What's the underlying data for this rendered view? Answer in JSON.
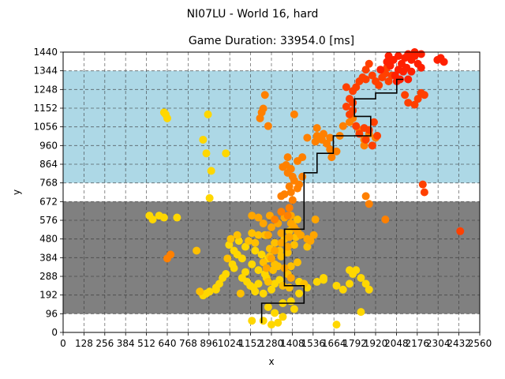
{
  "figure": {
    "suptitle": "NI07LU - World 16, hard"
  },
  "chart_data": {
    "type": "scatter",
    "title": "Game Duration: 33954.0 [ms]",
    "xlabel": "x",
    "ylabel": "y",
    "xlim": [
      0,
      2560
    ],
    "ylim": [
      0,
      1440
    ],
    "xticks": [
      0,
      128,
      256,
      384,
      512,
      640,
      768,
      896,
      1024,
      1152,
      1280,
      1408,
      1536,
      1664,
      1792,
      1920,
      2048,
      2176,
      2304,
      2432,
      2560
    ],
    "xtick_labels": [
      "0",
      "128",
      "256",
      "384",
      "512",
      "640",
      "768",
      "896",
      "1024",
      "1152",
      "1280",
      "1408",
      "1536",
      "1664",
      "1792",
      "1920",
      "2048",
      "2176",
      "2304",
      "2432",
      "2560"
    ],
    "yticks": [
      0,
      96,
      192,
      288,
      384,
      480,
      576,
      672,
      768,
      864,
      960,
      1056,
      1152,
      1248,
      1344,
      1440
    ],
    "ytick_labels": [
      "0",
      "96",
      "192",
      "288",
      "384",
      "480",
      "576",
      "672",
      "768",
      "864",
      "960",
      "1056",
      "1152",
      "1248",
      "1344",
      "1440"
    ],
    "grid": true,
    "grid_style": "dashed",
    "regions": [
      {
        "name": "gray-band",
        "color": "#808080",
        "y_range": [
          96,
          672
        ]
      },
      {
        "name": "blue-band",
        "color": "#add8e6",
        "y_range": [
          768,
          1344
        ]
      }
    ],
    "path": {
      "color": "#000000",
      "points": [
        [
          1220,
          48
        ],
        [
          1220,
          150
        ],
        [
          1480,
          150
        ],
        [
          1480,
          240
        ],
        [
          1360,
          240
        ],
        [
          1360,
          530
        ],
        [
          1480,
          530
        ],
        [
          1480,
          820
        ],
        [
          1560,
          820
        ],
        [
          1560,
          920
        ],
        [
          1660,
          920
        ],
        [
          1660,
          1010
        ],
        [
          1890,
          1010
        ],
        [
          1890,
          1110
        ],
        [
          1790,
          1110
        ],
        [
          1790,
          1200
        ],
        [
          1920,
          1200
        ],
        [
          1920,
          1230
        ],
        [
          2050,
          1230
        ],
        [
          2050,
          1300
        ],
        [
          2090,
          1300
        ]
      ]
    },
    "colors": {
      "yellow": "#ffd700",
      "gold": "#ffc000",
      "light-orange": "#ffa500",
      "orange": "#ff8000",
      "red-orange": "#ff4000",
      "red": "#ff2000"
    },
    "series": [
      {
        "color": "yellow",
        "points": [
          [
            1230,
            60
          ],
          [
            1280,
            40
          ],
          [
            1320,
            50
          ],
          [
            1350,
            80
          ],
          [
            1300,
            100
          ],
          [
            1260,
            130
          ],
          [
            1350,
            150
          ],
          [
            1420,
            120
          ],
          [
            1400,
            160
          ],
          [
            1230,
            200
          ],
          [
            1280,
            220
          ],
          [
            1300,
            250
          ],
          [
            1330,
            270
          ],
          [
            1380,
            300
          ],
          [
            1240,
            300
          ],
          [
            1200,
            320
          ],
          [
            1160,
            350
          ],
          [
            1100,
            380
          ],
          [
            1070,
            400
          ],
          [
            1050,
            420
          ],
          [
            1020,
            450
          ],
          [
            1080,
            470
          ],
          [
            1120,
            440
          ],
          [
            1180,
            420
          ],
          [
            1220,
            400
          ],
          [
            1260,
            380
          ],
          [
            1000,
            300
          ],
          [
            980,
            280
          ],
          [
            960,
            250
          ],
          [
            940,
            230
          ],
          [
            900,
            210
          ],
          [
            880,
            200
          ],
          [
            860,
            190
          ],
          [
            1100,
            280
          ],
          [
            1130,
            260
          ],
          [
            1150,
            240
          ],
          [
            1170,
            230
          ],
          [
            1180,
            210
          ],
          [
            1200,
            250
          ],
          [
            1250,
            280
          ],
          [
            1450,
            200
          ],
          [
            1500,
            230
          ],
          [
            1560,
            260
          ],
          [
            1600,
            270
          ],
          [
            1680,
            240
          ],
          [
            1720,
            220
          ],
          [
            1760,
            250
          ],
          [
            1780,
            300
          ],
          [
            1800,
            320
          ],
          [
            1830,
            280
          ],
          [
            1860,
            250
          ],
          [
            1880,
            220
          ],
          [
            1760,
            320
          ],
          [
            1680,
            40
          ],
          [
            1830,
            105
          ],
          [
            940,
            220
          ],
          [
            900,
            690
          ],
          [
            910,
            830
          ],
          [
            1000,
            920
          ],
          [
            860,
            990
          ],
          [
            880,
            920
          ],
          [
            890,
            1120
          ],
          [
            630,
            1120
          ],
          [
            640,
            1100
          ],
          [
            620,
            1130
          ],
          [
            530,
            600
          ],
          [
            550,
            580
          ],
          [
            590,
            600
          ],
          [
            620,
            590
          ],
          [
            700,
            590
          ],
          [
            1600,
            280
          ],
          [
            1450,
            260
          ],
          [
            1120,
            310
          ],
          [
            1050,
            330
          ],
          [
            1040,
            350
          ],
          [
            1160,
            60
          ]
        ]
      },
      {
        "color": "gold",
        "points": [
          [
            1300,
            350
          ],
          [
            1330,
            420
          ],
          [
            1360,
            480
          ],
          [
            1390,
            520
          ],
          [
            1410,
            550
          ],
          [
            1440,
            580
          ],
          [
            1430,
            490
          ],
          [
            1300,
            460
          ],
          [
            1270,
            430
          ],
          [
            1240,
            500
          ],
          [
            1200,
            500
          ],
          [
            1180,
            460
          ],
          [
            1140,
            470
          ],
          [
            1070,
            500
          ],
          [
            1030,
            480
          ],
          [
            1160,
            510
          ],
          [
            1260,
            260
          ],
          [
            1290,
            320
          ],
          [
            1320,
            340
          ],
          [
            1340,
            390
          ],
          [
            1380,
            410
          ],
          [
            1420,
            450
          ],
          [
            1440,
            360
          ],
          [
            1400,
            340
          ],
          [
            1270,
            390
          ],
          [
            1230,
            360
          ],
          [
            1350,
            240
          ],
          [
            1390,
            230
          ],
          [
            1480,
            250
          ],
          [
            1500,
            440
          ],
          [
            820,
            420
          ],
          [
            1380,
            300
          ],
          [
            1010,
            380
          ],
          [
            840,
            210
          ],
          [
            1090,
            200
          ]
        ]
      },
      {
        "color": "light-orange",
        "points": [
          [
            1260,
            500
          ],
          [
            1280,
            540
          ],
          [
            1320,
            560
          ],
          [
            1360,
            590
          ],
          [
            1400,
            560
          ],
          [
            1420,
            540
          ],
          [
            1440,
            520
          ],
          [
            1460,
            500
          ],
          [
            1540,
            500
          ],
          [
            1380,
            440
          ],
          [
            1340,
            460
          ],
          [
            1300,
            420
          ],
          [
            1280,
            380
          ],
          [
            1250,
            330
          ],
          [
            1360,
            330
          ],
          [
            1230,
            560
          ],
          [
            1270,
            600
          ],
          [
            1200,
            590
          ],
          [
            1160,
            600
          ],
          [
            1400,
            280
          ],
          [
            1400,
            600
          ],
          [
            1390,
            490
          ],
          [
            1340,
            510
          ],
          [
            1500,
            480
          ],
          [
            1520,
            470
          ],
          [
            1550,
            580
          ]
        ]
      },
      {
        "color": "orange",
        "points": [
          [
            640,
            380
          ],
          [
            660,
            400
          ],
          [
            1380,
            600
          ],
          [
            1390,
            640
          ],
          [
            1410,
            680
          ],
          [
            1400,
            720
          ],
          [
            1390,
            750
          ],
          [
            1440,
            740
          ],
          [
            1360,
            710
          ],
          [
            1340,
            700
          ],
          [
            1380,
            820
          ],
          [
            1400,
            840
          ],
          [
            1440,
            880
          ],
          [
            1470,
            900
          ],
          [
            1500,
            1000
          ],
          [
            1560,
            1010
          ],
          [
            1590,
            990
          ],
          [
            1620,
            970
          ],
          [
            1640,
            940
          ],
          [
            1680,
            930
          ],
          [
            1650,
            900
          ],
          [
            1410,
            800
          ],
          [
            1420,
            780
          ],
          [
            1450,
            760
          ],
          [
            1370,
            860
          ],
          [
            1350,
            850
          ],
          [
            1470,
            800
          ],
          [
            1260,
            1060
          ],
          [
            1240,
            1220
          ],
          [
            1210,
            1100
          ],
          [
            1220,
            1130
          ],
          [
            1230,
            1150
          ],
          [
            1420,
            1120
          ],
          [
            1560,
            1050
          ],
          [
            1600,
            1020
          ],
          [
            1640,
            1000
          ],
          [
            1700,
            1010
          ],
          [
            1720,
            1060
          ],
          [
            1760,
            1080
          ],
          [
            1780,
            1100
          ],
          [
            1820,
            1040
          ],
          [
            1850,
            990
          ],
          [
            1880,
            1020
          ],
          [
            1900,
            960
          ],
          [
            1920,
            1000
          ],
          [
            1850,
            960
          ],
          [
            1300,
            580
          ],
          [
            1340,
            620
          ],
          [
            1860,
            700
          ],
          [
            1880,
            660
          ],
          [
            1980,
            580
          ],
          [
            1380,
            900
          ],
          [
            1550,
            980
          ]
        ]
      },
      {
        "color": "red-orange",
        "points": [
          [
            1740,
            1160
          ],
          [
            1760,
            1200
          ],
          [
            1780,
            1240
          ],
          [
            1800,
            1260
          ],
          [
            1820,
            1290
          ],
          [
            1840,
            1310
          ],
          [
            1860,
            1350
          ],
          [
            1880,
            1380
          ],
          [
            1900,
            1320
          ],
          [
            1920,
            1290
          ],
          [
            1940,
            1270
          ],
          [
            1960,
            1310
          ],
          [
            1980,
            1330
          ],
          [
            1990,
            1360
          ],
          [
            2000,
            1290
          ],
          [
            2020,
            1320
          ],
          [
            1780,
            1140
          ],
          [
            1760,
            1120
          ],
          [
            1800,
            1060
          ],
          [
            1820,
            1020
          ],
          [
            1850,
            1050
          ],
          [
            1880,
            1040
          ],
          [
            1910,
            1080
          ],
          [
            1930,
            1010
          ],
          [
            1900,
            960
          ],
          [
            1860,
            990
          ],
          [
            2100,
            1220
          ],
          [
            2120,
            1180
          ],
          [
            2160,
            1170
          ],
          [
            2200,
            1230
          ],
          [
            2220,
            1220
          ],
          [
            2180,
            1200
          ],
          [
            2210,
            760
          ],
          [
            2220,
            720
          ],
          [
            2440,
            520
          ],
          [
            1740,
            1260
          ],
          [
            1780,
            1180
          ],
          [
            1860,
            1300
          ]
        ]
      },
      {
        "color": "red",
        "points": [
          [
            2040,
            1320
          ],
          [
            2060,
            1350
          ],
          [
            2080,
            1380
          ],
          [
            2100,
            1410
          ],
          [
            2120,
            1430
          ],
          [
            2140,
            1400
          ],
          [
            2160,
            1420
          ],
          [
            2180,
            1380
          ],
          [
            2200,
            1360
          ],
          [
            2050,
            1290
          ],
          [
            2070,
            1300
          ],
          [
            2090,
            1340
          ],
          [
            2030,
            1400
          ],
          [
            2010,
            1370
          ],
          [
            1990,
            1390
          ],
          [
            2160,
            1440
          ],
          [
            2200,
            1430
          ],
          [
            2320,
            1410
          ],
          [
            2340,
            1390
          ],
          [
            2300,
            1400
          ],
          [
            2120,
            1300
          ],
          [
            2110,
            1360
          ],
          [
            2000,
            1420
          ],
          [
            1950,
            1350
          ],
          [
            2060,
            1420
          ],
          [
            2140,
            1340
          ]
        ]
      }
    ]
  }
}
